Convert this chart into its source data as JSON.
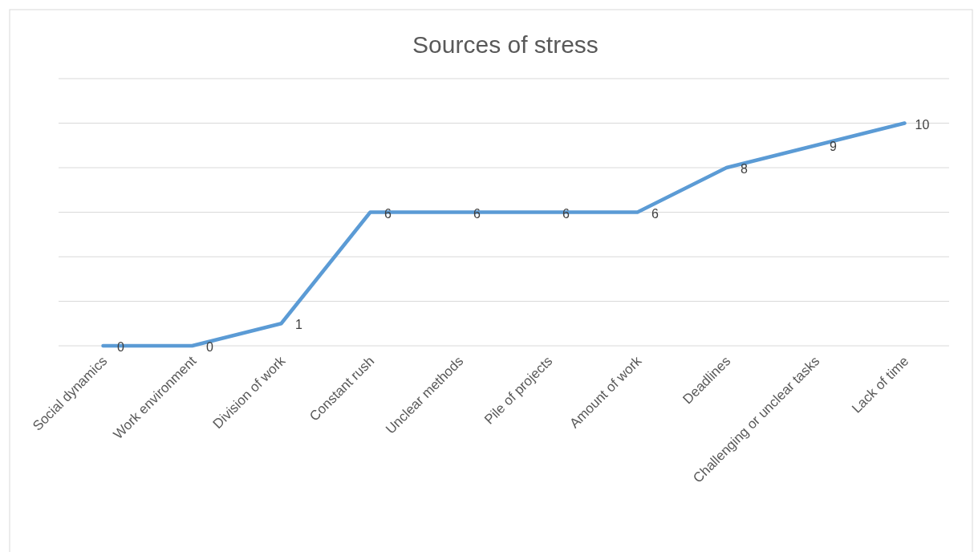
{
  "chart_data": {
    "type": "line",
    "title": "Sources of stress",
    "categories": [
      "Social dynamics",
      "Work environment",
      "Division of work",
      "Constant rush",
      "Unclear methods",
      "Pile of projects",
      "Amount of work",
      "Deadlines",
      "Challenging or unclear tasks",
      "Lack of time"
    ],
    "series": [
      {
        "color": "#5b9bd5",
        "values": [
          0,
          0,
          1,
          6,
          6,
          6,
          6,
          8,
          9,
          10
        ]
      }
    ],
    "ylim": [
      0,
      12
    ],
    "yticks": [
      {
        "value": 0,
        "label": null
      },
      {
        "value": 2,
        "label": null
      },
      {
        "value": 4,
        "label": null
      },
      {
        "value": 6,
        "label": null
      },
      {
        "value": 8,
        "label": null
      },
      {
        "value": 10,
        "label": null
      },
      {
        "value": 12,
        "label": null
      }
    ],
    "grid": "y",
    "data_labels": true,
    "marker": "none",
    "line_style": "solid",
    "tick_labels": "x"
  }
}
